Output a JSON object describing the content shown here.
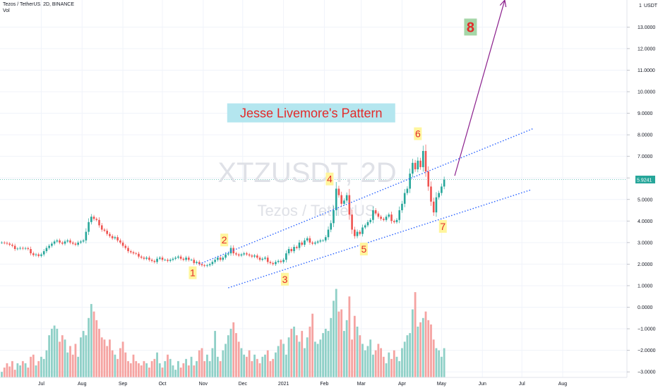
{
  "header": {
    "symbol_line": "Tezos / TetherUS, 2D, BINANCE",
    "indicator": "Vol"
  },
  "watermark": {
    "ticker": "XTZUSDT, 2D",
    "name": "Tezos / TetherUS"
  },
  "price_axis": {
    "unit": "USDT",
    "current_price": "5.9241",
    "current_price_value": 5.9241
  },
  "annotations": {
    "title": "Jesse Livemore's Pattern",
    "labels": [
      "1",
      "2",
      "3",
      "4",
      "5",
      "6",
      "7",
      "8"
    ]
  },
  "colors": {
    "up": "#26a69a",
    "down": "#ef5350",
    "vol_up": "#8fd0c7",
    "vol_down": "#f5a3a1",
    "trend_line": "#2962ff",
    "arrow": "#8b1f8c",
    "title_bg": "#b4e6ef",
    "title_text": "#e32a2a",
    "label_bg": "#fff59d",
    "label8_bg": "#a5d6a7",
    "price_badge": "#26a69a"
  },
  "chart_data": {
    "type": "candlestick",
    "ylim": [
      -3.2,
      14.3
    ],
    "y_ticks": [
      {
        "v": 13,
        "label": "13.0000"
      },
      {
        "v": 12,
        "label": "12.0000"
      },
      {
        "v": 11,
        "label": "11.0000"
      },
      {
        "v": 10,
        "label": "10.0000"
      },
      {
        "v": 9,
        "label": "9.0000"
      },
      {
        "v": 8,
        "label": "8.0000"
      },
      {
        "v": 7,
        "label": "7.0000"
      },
      {
        "v": 6,
        "label": "6.0000"
      },
      {
        "v": 5,
        "label": "5.0000"
      },
      {
        "v": 4,
        "label": "4.0000"
      },
      {
        "v": 3,
        "label": "3.0000"
      },
      {
        "v": 2,
        "label": "2.0000"
      },
      {
        "v": 1,
        "label": "1.0000"
      },
      {
        "v": 0,
        "label": "0.0000"
      },
      {
        "v": -1,
        "label": "−1.0000"
      },
      {
        "v": -2,
        "label": "−2.0000"
      },
      {
        "v": -3,
        "label": "−3.0000"
      }
    ],
    "x_ticks": [
      {
        "label": "Jul",
        "idx": 15
      },
      {
        "label": "Aug",
        "idx": 30.5
      },
      {
        "label": "Sep",
        "idx": 46
      },
      {
        "label": "Oct",
        "idx": 61
      },
      {
        "label": "Nov",
        "idx": 76.5
      },
      {
        "label": "Dec",
        "idx": 91.5
      },
      {
        "label": "2021",
        "idx": 107
      },
      {
        "label": "Feb",
        "idx": 122.5
      },
      {
        "label": "Mar",
        "idx": 136.5
      },
      {
        "label": "Apr",
        "idx": 152
      },
      {
        "label": "May",
        "idx": 167
      },
      {
        "label": "Jun",
        "idx": 182.5
      },
      {
        "label": "Jul",
        "idx": 197.5
      },
      {
        "label": "Aug",
        "idx": 213
      }
    ],
    "closes": [
      3.0,
      2.98,
      2.95,
      2.9,
      2.85,
      2.7,
      2.72,
      2.75,
      2.72,
      2.74,
      2.7,
      2.5,
      2.42,
      2.45,
      2.38,
      2.45,
      2.6,
      2.75,
      2.85,
      2.95,
      3.05,
      3.1,
      3.0,
      2.95,
      3.05,
      3.1,
      3.0,
      2.95,
      2.9,
      3.0,
      3.05,
      3.1,
      3.5,
      3.95,
      4.2,
      4.1,
      4.05,
      3.8,
      3.6,
      3.55,
      3.4,
      3.3,
      3.2,
      3.25,
      3.1,
      3.0,
      2.85,
      2.75,
      2.6,
      2.55,
      2.5,
      2.48,
      2.35,
      2.3,
      2.25,
      2.3,
      2.2,
      2.15,
      2.1,
      2.25,
      2.3,
      2.2,
      2.2,
      2.15,
      2.2,
      2.25,
      2.3,
      2.35,
      2.25,
      2.2,
      2.3,
      2.2,
      2.2,
      2.05,
      2.1,
      2.0,
      1.95,
      1.92,
      1.95,
      2.0,
      2.1,
      2.2,
      2.3,
      2.2,
      2.3,
      2.45,
      2.5,
      2.75,
      2.5,
      2.45,
      2.4,
      2.45,
      2.5,
      2.45,
      2.4,
      2.35,
      2.4,
      2.3,
      2.2,
      2.25,
      2.3,
      2.1,
      2.05,
      2.0,
      2.1,
      2.15,
      2.1,
      2.2,
      2.5,
      2.7,
      2.6,
      2.8,
      2.75,
      3.0,
      2.9,
      3.1,
      3.2,
      3.0,
      2.95,
      3.0,
      3.05,
      3.1,
      3.1,
      3.25,
      3.6,
      3.9,
      4.5,
      5.5,
      5.2,
      4.8,
      4.95,
      5.2,
      4.3,
      3.6,
      3.3,
      3.5,
      3.4,
      3.7,
      3.8,
      3.95,
      4.05,
      4.5,
      4.35,
      4.2,
      4.1,
      4.05,
      4.2,
      4.3,
      4.0,
      3.95,
      4.05,
      4.5,
      4.8,
      5.3,
      5.5,
      6.2,
      6.7,
      6.4,
      6.8,
      6.5,
      7.25,
      6.3,
      5.6,
      4.9,
      4.4,
      5.1,
      5.3,
      5.6,
      5.92
    ],
    "vol_values": [
      -3.0,
      -2.8,
      -2.6,
      -2.75,
      -2.5,
      -2.9,
      -2.6,
      -2.7,
      -2.5,
      -2.6,
      -2.8,
      -2.3,
      -2.2,
      -2.7,
      -2.5,
      -2.3,
      -2.4,
      -2.0,
      -1.3,
      -1.0,
      -0.85,
      -1.0,
      -1.6,
      -1.3,
      -1.5,
      -2.1,
      -1.8,
      -2.2,
      -1.7,
      -2.3,
      -1.4,
      -1.1,
      -1.3,
      -0.5,
      0.15,
      -0.2,
      -0.6,
      -1.0,
      -1.4,
      -1.5,
      -1.8,
      -1.5,
      -2.0,
      -2.2,
      -2.4,
      -1.9,
      -1.6,
      -2.1,
      -2.5,
      -2.6,
      -2.2,
      -2.5,
      -2.6,
      -2.7,
      -2.5,
      -2.6,
      -2.8,
      -2.5,
      -2.4,
      -2.1,
      -2.6,
      -2.8,
      -2.5,
      -2.2,
      -2.4,
      -2.7,
      -2.9,
      -2.5,
      -2.8,
      -2.6,
      -2.4,
      -2.7,
      -2.3,
      -2.7,
      -2.5,
      -2.0,
      -1.9,
      -2.5,
      -2.2,
      -2.5,
      -1.9,
      -1.1,
      -2.3,
      -2.5,
      -2.0,
      -1.7,
      -1.3,
      -1.0,
      -0.7,
      -1.2,
      -1.6,
      -1.9,
      -2.2,
      -2.3,
      -2.0,
      -2.5,
      -2.2,
      -2.4,
      -2.6,
      -2.3,
      -2.2,
      -2.0,
      -2.5,
      -2.4,
      -2.1,
      -1.8,
      -1.5,
      -1.7,
      -2.2,
      -1.4,
      -1.0,
      -0.9,
      -1.3,
      -1.6,
      -1.1,
      -1.9,
      -1.4,
      -0.9,
      -0.3,
      -1.6,
      -1.7,
      -1.5,
      -1.2,
      -1.0,
      -1.1,
      -0.5,
      0.3,
      0.85,
      -0.2,
      -0.1,
      -1.1,
      -0.6,
      0.5,
      -1.5,
      -0.4,
      -0.9,
      -1.3,
      -1.7,
      -2.0,
      -1.8,
      -1.5,
      -2.2,
      -2.0,
      -1.7,
      -1.9,
      -2.3,
      -2.6,
      -2.1,
      -2.4,
      -2.0,
      -2.3,
      -2.5,
      -1.9,
      -1.6,
      -1.3,
      -1.2,
      -0.1,
      0.7,
      -0.9,
      -0.7,
      -0.5,
      -0.2,
      -0.6,
      -0.8,
      -1.5,
      -1.9,
      -2.0,
      -2.3,
      -1.9
    ],
    "trend_lines": [
      {
        "from": [
          75,
          2.0
        ],
        "to": [
          202,
          8.3
        ]
      },
      {
        "from": [
          86,
          0.9
        ],
        "to": [
          201,
          5.45
        ]
      }
    ],
    "projection_arrow": {
      "from": [
        172,
        6.1
      ],
      "to": [
        191,
        14.25
      ]
    },
    "label_points": [
      {
        "text": "1",
        "idx": 72.5,
        "v": 1.6
      },
      {
        "text": "2",
        "idx": 84.5,
        "v": 3.12
      },
      {
        "text": "3",
        "idx": 107.5,
        "v": 1.3
      },
      {
        "text": "4",
        "idx": 124.5,
        "v": 5.95
      },
      {
        "text": "5",
        "idx": 137.5,
        "v": 2.7
      },
      {
        "text": "6",
        "idx": 158,
        "v": 8.05
      },
      {
        "text": "7",
        "idx": 167.5,
        "v": 3.75
      },
      {
        "text": "8",
        "idx": 178,
        "v": 13.0
      }
    ],
    "title_anchor": {
      "idx": 117.5,
      "v": 9.0
    }
  }
}
